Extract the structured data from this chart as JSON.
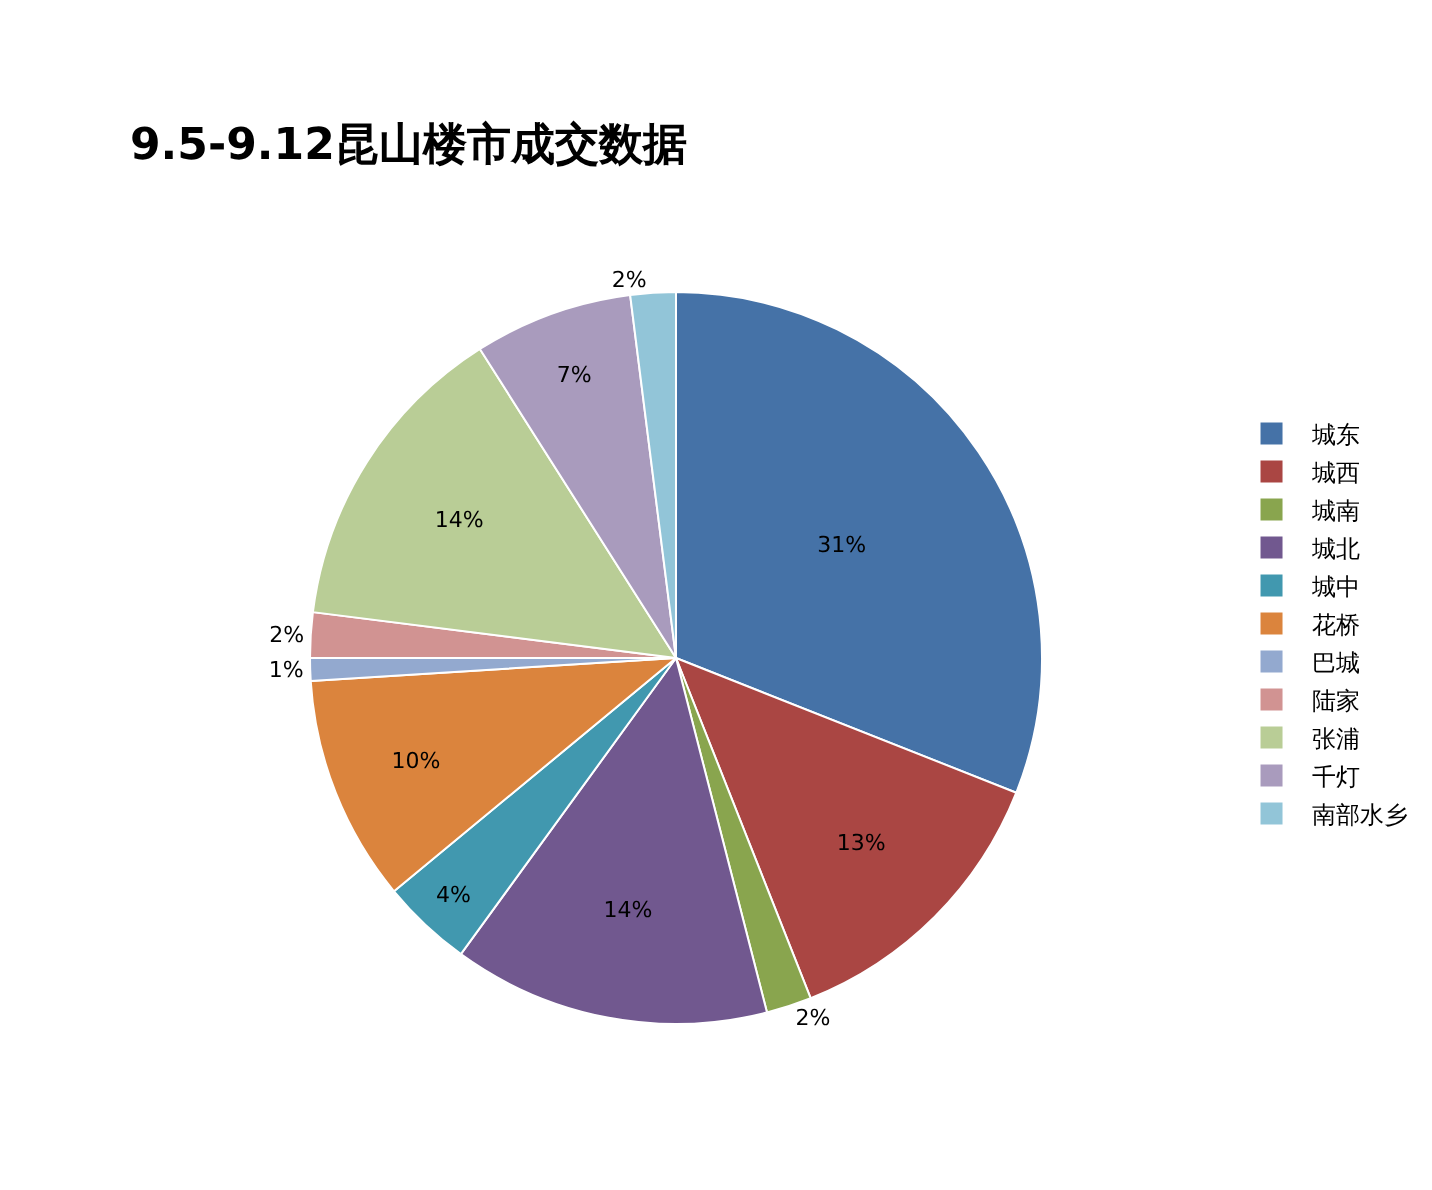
{
  "chart_data": {
    "type": "pie",
    "title": "9.5-9.12昆山楼市成交数据",
    "categories": [
      "城东",
      "城西",
      "城南",
      "城北",
      "城中",
      "花桥",
      "巴城",
      "陆家",
      "张浦",
      "千灯",
      "南部水乡"
    ],
    "values": [
      31,
      13,
      2,
      14,
      4,
      10,
      1,
      2,
      14,
      7,
      2
    ],
    "value_labels": [
      "31%",
      "13%",
      "2%",
      "14%",
      "4%",
      "10%",
      "1%",
      "2%",
      "14%",
      "7%",
      "2%"
    ],
    "colors": [
      "#4572a7",
      "#aa4643",
      "#89a54e",
      "#71588f",
      "#4198af",
      "#db843d",
      "#93a9cf",
      "#d19392",
      "#b9cd96",
      "#a99bbd",
      "#92c5d8"
    ],
    "legend": "right"
  }
}
